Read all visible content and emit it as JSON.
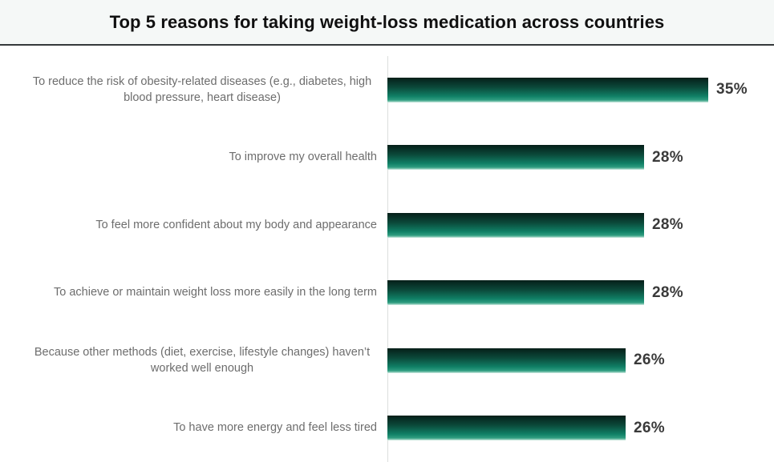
{
  "header": {
    "title": "Top 5 reasons for taking weight-loss medication across countries"
  },
  "chart_data": {
    "type": "bar",
    "orientation": "horizontal",
    "title": "Top 5 reasons for taking weight-loss medication across countries",
    "categories": [
      "To reduce the risk of obesity-related diseases (e.g., diabetes, high blood pressure, heart disease)",
      "To improve my overall health",
      "To feel more confident about my body and appearance",
      "To achieve or maintain weight loss more easily in the long term",
      "Because other methods (diet, exercise, lifestyle changes) haven’t worked well enough",
      "To have more energy and feel less tired"
    ],
    "values": [
      35,
      28,
      28,
      28,
      26,
      26
    ],
    "value_labels": [
      "35%",
      "28%",
      "28%",
      "28%",
      "26%",
      "26%"
    ],
    "value_suffix": "%",
    "grid": false,
    "legend": null,
    "axis_tick_labels_visible": false,
    "bar_gradient": {
      "top": "#051f19",
      "middle": "#108066",
      "bottom_fade": "#e8f5f0"
    },
    "category_label_color": "#6d6d6d",
    "value_label_color": "#3a3a3a",
    "axis_line_color": "#dcdfdd",
    "title_band_background": "#f5f8f7"
  }
}
